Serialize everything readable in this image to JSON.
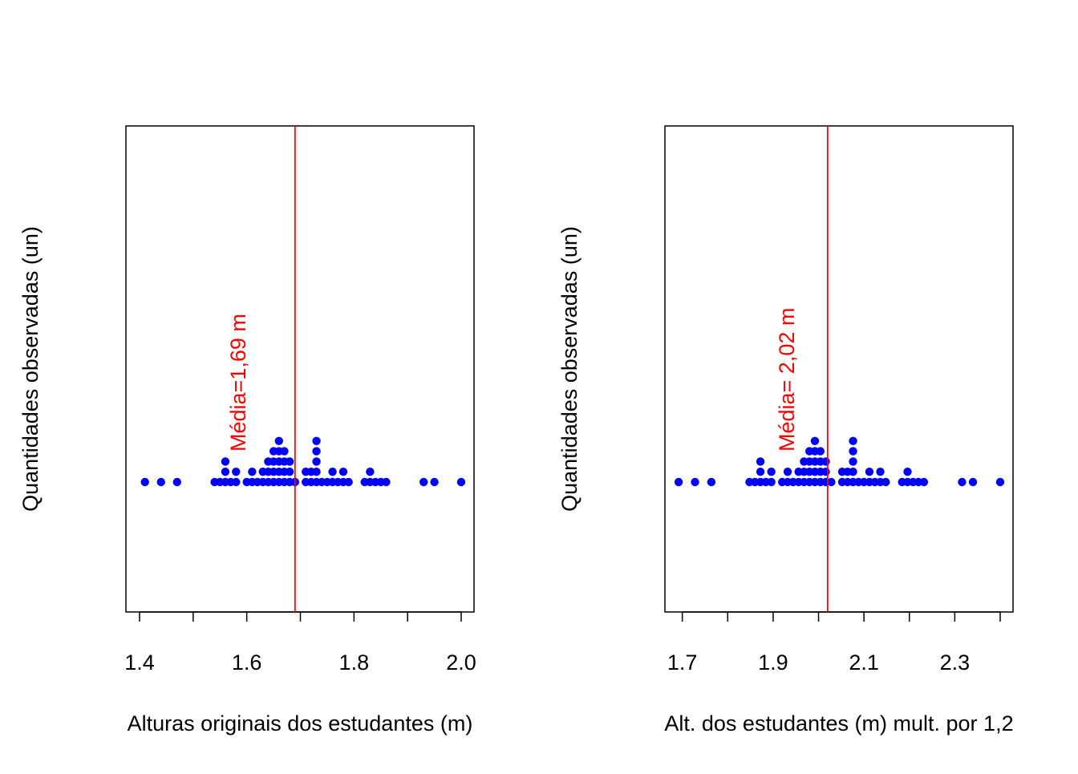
{
  "chart_data": [
    {
      "type": "scatter",
      "title": "",
      "xlabel": "Alturas originais dos estudantes (m)",
      "ylabel": "Quantidades observadas (un)",
      "xlim": [
        1.4,
        2.0
      ],
      "x_ticks": [
        1.4,
        1.5,
        1.6,
        1.7,
        1.8,
        1.9,
        2.0
      ],
      "x_tick_labels": [
        "1.4",
        "1.6",
        "1.8",
        "2.0"
      ],
      "mean": 1.69,
      "mean_label": "Média=1,69 m",
      "points": [
        [
          1.41,
          1
        ],
        [
          1.44,
          1
        ],
        [
          1.47,
          1
        ],
        [
          1.54,
          1
        ],
        [
          1.55,
          1
        ],
        [
          1.56,
          1
        ],
        [
          1.56,
          2
        ],
        [
          1.56,
          3
        ],
        [
          1.57,
          1
        ],
        [
          1.58,
          1
        ],
        [
          1.58,
          2
        ],
        [
          1.6,
          1
        ],
        [
          1.61,
          1
        ],
        [
          1.61,
          2
        ],
        [
          1.62,
          1
        ],
        [
          1.63,
          1
        ],
        [
          1.63,
          2
        ],
        [
          1.64,
          1
        ],
        [
          1.64,
          2
        ],
        [
          1.64,
          3
        ],
        [
          1.65,
          1
        ],
        [
          1.65,
          2
        ],
        [
          1.65,
          3
        ],
        [
          1.65,
          4
        ],
        [
          1.66,
          1
        ],
        [
          1.66,
          2
        ],
        [
          1.66,
          3
        ],
        [
          1.66,
          4
        ],
        [
          1.66,
          5
        ],
        [
          1.67,
          1
        ],
        [
          1.67,
          2
        ],
        [
          1.67,
          3
        ],
        [
          1.67,
          4
        ],
        [
          1.68,
          1
        ],
        [
          1.68,
          2
        ],
        [
          1.68,
          3
        ],
        [
          1.69,
          1
        ],
        [
          1.71,
          1
        ],
        [
          1.71,
          2
        ],
        [
          1.72,
          1
        ],
        [
          1.72,
          2
        ],
        [
          1.73,
          1
        ],
        [
          1.73,
          2
        ],
        [
          1.73,
          3
        ],
        [
          1.73,
          4
        ],
        [
          1.73,
          5
        ],
        [
          1.74,
          1
        ],
        [
          1.75,
          1
        ],
        [
          1.76,
          1
        ],
        [
          1.76,
          2
        ],
        [
          1.77,
          1
        ],
        [
          1.78,
          1
        ],
        [
          1.78,
          2
        ],
        [
          1.79,
          1
        ],
        [
          1.82,
          1
        ],
        [
          1.83,
          1
        ],
        [
          1.83,
          2
        ],
        [
          1.84,
          1
        ],
        [
          1.85,
          1
        ],
        [
          1.86,
          1
        ],
        [
          1.93,
          1
        ],
        [
          1.95,
          1
        ],
        [
          2.0,
          1
        ]
      ],
      "colors": {
        "points": "#0000ff",
        "mean_line": "#ff0000",
        "axis": "#000000"
      }
    },
    {
      "type": "scatter",
      "title": "",
      "xlabel": "Alt. dos estudantes (m) mult. por 1,2",
      "ylabel": "Quantidades observadas (un)",
      "xlim": [
        1.69,
        2.4
      ],
      "x_ticks": [
        1.7,
        1.8,
        1.9,
        2.0,
        2.1,
        2.2,
        2.3,
        2.4
      ],
      "x_tick_labels": [
        "1.7",
        "1.9",
        "2.1",
        "2.3"
      ],
      "mean": 2.02,
      "mean_label": "Média= 2,02 m",
      "points": [
        [
          1.692,
          1
        ],
        [
          1.728,
          1
        ],
        [
          1.764,
          1
        ],
        [
          1.848,
          1
        ],
        [
          1.86,
          1
        ],
        [
          1.872,
          1
        ],
        [
          1.872,
          2
        ],
        [
          1.872,
          3
        ],
        [
          1.884,
          1
        ],
        [
          1.896,
          1
        ],
        [
          1.896,
          2
        ],
        [
          1.92,
          1
        ],
        [
          1.932,
          1
        ],
        [
          1.932,
          2
        ],
        [
          1.944,
          1
        ],
        [
          1.956,
          1
        ],
        [
          1.956,
          2
        ],
        [
          1.968,
          1
        ],
        [
          1.968,
          2
        ],
        [
          1.968,
          3
        ],
        [
          1.98,
          1
        ],
        [
          1.98,
          2
        ],
        [
          1.98,
          3
        ],
        [
          1.98,
          4
        ],
        [
          1.992,
          1
        ],
        [
          1.992,
          2
        ],
        [
          1.992,
          3
        ],
        [
          1.992,
          4
        ],
        [
          1.992,
          5
        ],
        [
          2.004,
          1
        ],
        [
          2.004,
          2
        ],
        [
          2.004,
          3
        ],
        [
          2.004,
          4
        ],
        [
          2.016,
          1
        ],
        [
          2.016,
          2
        ],
        [
          2.016,
          3
        ],
        [
          2.028,
          1
        ],
        [
          2.052,
          1
        ],
        [
          2.052,
          2
        ],
        [
          2.064,
          1
        ],
        [
          2.064,
          2
        ],
        [
          2.076,
          1
        ],
        [
          2.076,
          2
        ],
        [
          2.076,
          3
        ],
        [
          2.076,
          4
        ],
        [
          2.076,
          5
        ],
        [
          2.088,
          1
        ],
        [
          2.1,
          1
        ],
        [
          2.112,
          1
        ],
        [
          2.112,
          2
        ],
        [
          2.124,
          1
        ],
        [
          2.136,
          1
        ],
        [
          2.136,
          2
        ],
        [
          2.148,
          1
        ],
        [
          2.184,
          1
        ],
        [
          2.196,
          1
        ],
        [
          2.196,
          2
        ],
        [
          2.208,
          1
        ],
        [
          2.22,
          1
        ],
        [
          2.232,
          1
        ],
        [
          2.316,
          1
        ],
        [
          2.34,
          1
        ],
        [
          2.4,
          1
        ]
      ],
      "colors": {
        "points": "#0000ff",
        "mean_line": "#ff0000",
        "axis": "#000000"
      }
    }
  ]
}
